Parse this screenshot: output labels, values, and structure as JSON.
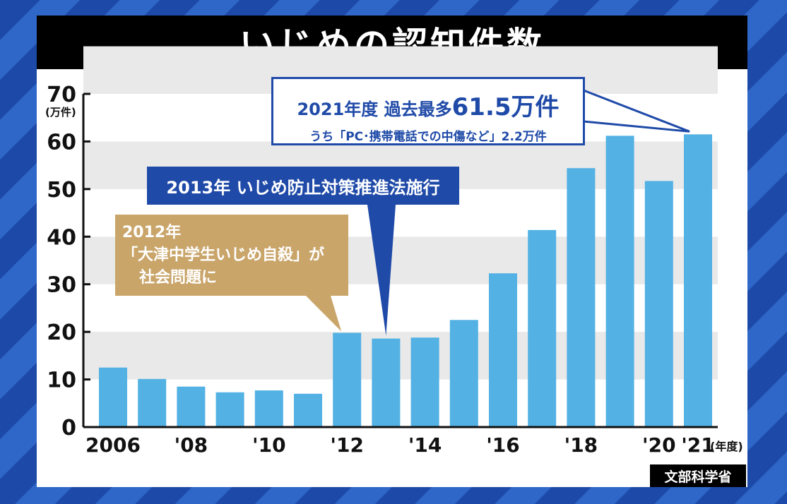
{
  "title": "いじめの認知件数",
  "source": "文部科学省",
  "chart_data": {
    "type": "bar",
    "categories": [
      "2006",
      "2007",
      "2008",
      "2009",
      "2010",
      "2011",
      "2012",
      "2013",
      "2014",
      "2015",
      "2016",
      "2017",
      "2018",
      "2019",
      "2020",
      "2021"
    ],
    "values": [
      12.5,
      10.1,
      8.5,
      7.3,
      7.7,
      7.0,
      19.8,
      18.6,
      18.8,
      22.5,
      32.3,
      41.4,
      54.4,
      61.2,
      51.7,
      61.5
    ],
    "x_tick_labels": [
      "2006",
      "",
      "'08",
      "",
      "'10",
      "",
      "'12",
      "",
      "'14",
      "",
      "'16",
      "",
      "'18",
      "",
      "'20",
      "'21"
    ],
    "x_unit": "(年度)",
    "y_ticks": [
      0,
      10,
      20,
      30,
      40,
      50,
      60,
      70
    ],
    "y_unit": "(万件)",
    "ylim": [
      0,
      70
    ],
    "bar_color": "#53b1e4",
    "grid_band_color": "#e9e9e9",
    "annotations": {
      "record": {
        "line1_prefix": "2021年度  過去最多",
        "line1_value": "61.5万件",
        "line2": "うち「PC･携帯電話での中傷など」2.2万件",
        "color": "#1f4aa8"
      },
      "law": {
        "text": "2013年  いじめ防止対策推進法施行",
        "color": "#1f4aa8"
      },
      "event": {
        "line1": "2012年",
        "line2": "「大津中学生いじめ自殺」が",
        "line3": "社会問題に",
        "color": "#c9a56a"
      }
    }
  }
}
